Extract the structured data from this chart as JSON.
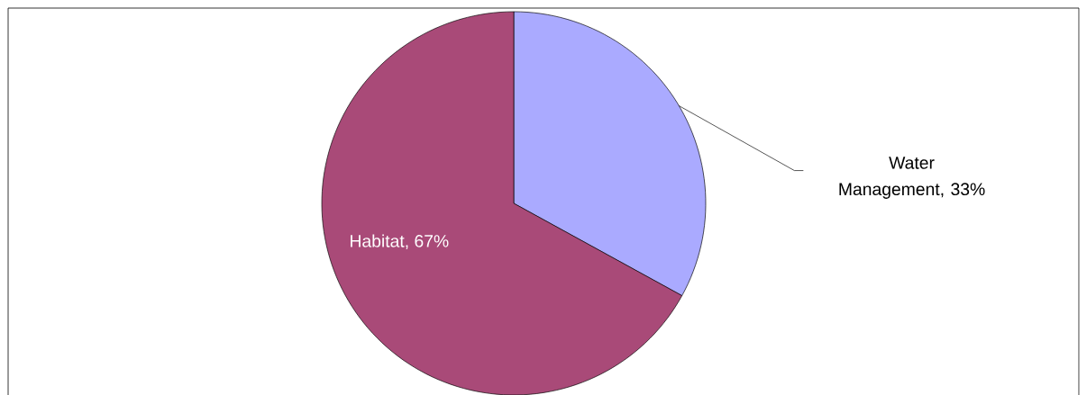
{
  "chart_data": {
    "type": "pie",
    "categories": [
      "Water Management",
      "Habitat"
    ],
    "values": [
      33,
      67
    ],
    "colors": [
      "#aaaaff",
      "#a94a78"
    ],
    "value_labels": [
      ", 33%",
      ", 67%"
    ]
  }
}
